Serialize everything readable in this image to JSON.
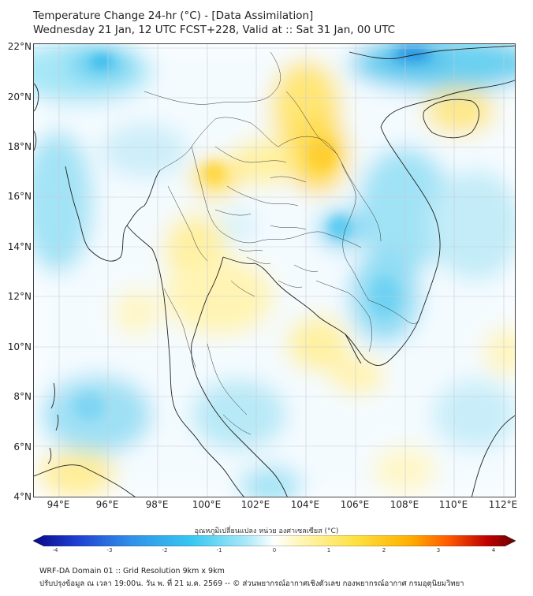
{
  "header": {
    "title_line1": "Temperature Change 24-hr (°C) - [Data Assimilation]",
    "title_line2": "Wednesday 21 Jan, 12 UTC FCST+228, Valid at :: Sat 31 Jan, 00 UTC"
  },
  "map": {
    "lat_labels": [
      "22°N",
      "20°N",
      "18°N",
      "16°N",
      "14°N",
      "12°N",
      "10°N",
      "8°N",
      "6°N",
      "4°N"
    ],
    "lon_labels": [
      "94°E",
      "96°E",
      "98°E",
      "100°E",
      "102°E",
      "104°E",
      "106°E",
      "108°E",
      "110°E",
      "112°E"
    ],
    "extent": {
      "lon_min": 93,
      "lon_max": 112.5,
      "lat_min": 4,
      "lat_max": 22.3
    }
  },
  "colorbar": {
    "title": "อุณหภูมิเปลี่ยนแปลง หน่วย องศาเซลเซียส (°C)",
    "ticks": [
      "-4",
      "-3",
      "-2",
      "-1",
      "0",
      "1",
      "2",
      "3",
      "4"
    ],
    "range": [
      -4,
      4
    ],
    "colors": [
      "#08088a",
      "#1f3fd0",
      "#2f8fe8",
      "#38c8f0",
      "#a8e8f8",
      "#ffffff",
      "#fff5b0",
      "#ffe040",
      "#ffb000",
      "#ff5a00",
      "#c00000",
      "#6a0000"
    ]
  },
  "footer": {
    "line1": "WRF-DA Domain 01 :: Grid Resolution 9km x 9km",
    "line2": "ปรับปรุงข้อมูล ณ เวลา 19:00น. วัน พ. ที่ 21 ม.ค. 2569 -- © ส่วนพยากรณ์อากาศเชิงตัวเลข กองพยากรณ์อากาศ กรมอุตุนิยมวิทยา"
  }
}
